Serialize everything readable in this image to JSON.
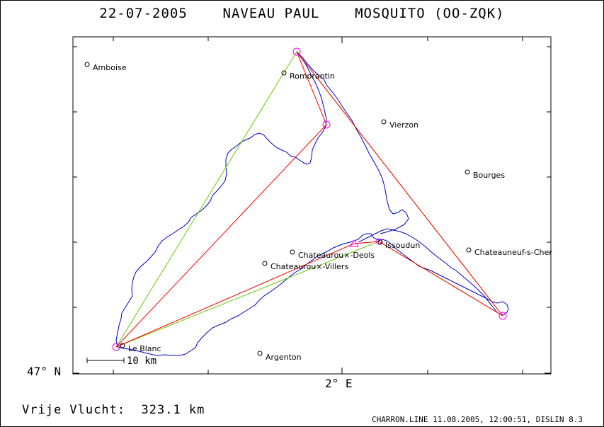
{
  "header": {
    "title": "22-07-2005    NAVEAU PAUL    MOSQUITO (OO-ZQK)"
  },
  "footer": {
    "info": "CHARRON.LINE 11.08.2005, 12:00:51, DISLIN 8.3",
    "distance": "Vrije Vlucht:  323.1 km"
  },
  "axes": {
    "lat_label": "47° N",
    "lon_label": "2° E"
  },
  "scale": {
    "label": "10 km"
  },
  "colors": {
    "track": "#0000cc",
    "flown": "#ff0000",
    "optimized": "#66cc00",
    "turnpoint": "#ff00ff"
  },
  "cities": [
    {
      "name": "Amboise"
    },
    {
      "name": "Romorantin"
    },
    {
      "name": "Vierzon"
    },
    {
      "name": "Bourges"
    },
    {
      "name": "Issoudun"
    },
    {
      "name": "Chateaurou×-Deols"
    },
    {
      "name": "Chateaurou×-Villers"
    },
    {
      "name": "Chateauneuf-s-Cher"
    },
    {
      "name": "Le Blanc"
    },
    {
      "name": "Argenton"
    }
  ]
}
